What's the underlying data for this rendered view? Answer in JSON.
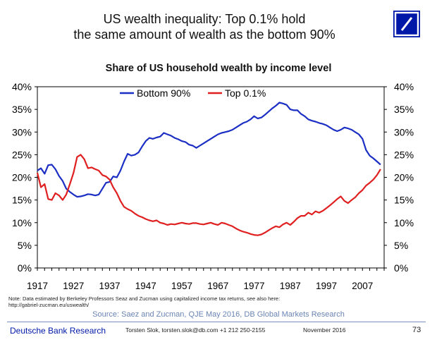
{
  "slide": {
    "title_line1": "US wealth inequality: Top 0.1% hold",
    "title_line2": "the same amount of wealth as the bottom 90%"
  },
  "chart_data": {
    "type": "line",
    "title": "Share of US household wealth by income level",
    "xlabel": "",
    "ylabel": "",
    "xlim": [
      1917,
      2013
    ],
    "ylim": [
      0,
      40
    ],
    "x_ticks": [
      1917,
      1927,
      1937,
      1947,
      1957,
      1967,
      1977,
      1987,
      1997,
      2007
    ],
    "y_ticks": [
      "0%",
      "5%",
      "10%",
      "15%",
      "20%",
      "25%",
      "30%",
      "35%",
      "40%"
    ],
    "grid": false,
    "legend_position": "top-center",
    "series": [
      {
        "name": "Bottom 90%",
        "color": "#1c2fc4",
        "x": [
          1917,
          1918,
          1919,
          1920,
          1921,
          1922,
          1923,
          1924,
          1925,
          1926,
          1927,
          1928,
          1929,
          1930,
          1931,
          1932,
          1933,
          1934,
          1935,
          1936,
          1937,
          1938,
          1939,
          1940,
          1941,
          1942,
          1943,
          1944,
          1945,
          1946,
          1947,
          1948,
          1949,
          1950,
          1951,
          1952,
          1953,
          1954,
          1955,
          1956,
          1957,
          1958,
          1959,
          1960,
          1961,
          1962,
          1963,
          1964,
          1965,
          1966,
          1967,
          1968,
          1969,
          1970,
          1971,
          1972,
          1973,
          1974,
          1975,
          1976,
          1977,
          1978,
          1979,
          1980,
          1981,
          1982,
          1983,
          1984,
          1985,
          1986,
          1987,
          1988,
          1989,
          1990,
          1991,
          1992,
          1993,
          1994,
          1995,
          1996,
          1997,
          1998,
          1999,
          2000,
          2001,
          2002,
          2003,
          2004,
          2005,
          2006,
          2007,
          2008,
          2009,
          2010,
          2011,
          2012
        ],
        "values": [
          21.5,
          22.0,
          20.8,
          22.7,
          22.8,
          21.8,
          20.3,
          19.2,
          17.5,
          16.8,
          16.2,
          15.7,
          15.8,
          16.0,
          16.3,
          16.2,
          16.0,
          16.2,
          17.5,
          18.8,
          19.0,
          20.2,
          20.0,
          21.5,
          23.5,
          25.2,
          24.8,
          25.0,
          25.5,
          26.8,
          28.0,
          28.7,
          28.5,
          28.8,
          29.0,
          29.8,
          29.5,
          29.2,
          28.7,
          28.4,
          28.0,
          27.8,
          27.2,
          27.0,
          26.5,
          27.0,
          27.5,
          28.0,
          28.5,
          29.0,
          29.5,
          29.8,
          30.0,
          30.2,
          30.5,
          31.0,
          31.5,
          32.0,
          32.3,
          32.8,
          33.5,
          33.0,
          33.2,
          33.8,
          34.5,
          35.2,
          35.8,
          36.5,
          36.3,
          36.0,
          35.0,
          34.8,
          34.8,
          34.0,
          33.5,
          32.8,
          32.5,
          32.3,
          32.0,
          31.8,
          31.5,
          31.0,
          30.5,
          30.2,
          30.5,
          31.0,
          30.8,
          30.5,
          30.0,
          29.5,
          28.5,
          26.0,
          24.8,
          24.2,
          23.5,
          22.8
        ]
      },
      {
        "name": "Top 0.1%",
        "color": "#e02020",
        "x": [
          1917,
          1918,
          1919,
          1920,
          1921,
          1922,
          1923,
          1924,
          1925,
          1926,
          1927,
          1928,
          1929,
          1930,
          1931,
          1932,
          1933,
          1934,
          1935,
          1936,
          1937,
          1938,
          1939,
          1940,
          1941,
          1942,
          1943,
          1944,
          1945,
          1946,
          1947,
          1948,
          1949,
          1950,
          1951,
          1952,
          1953,
          1954,
          1955,
          1956,
          1957,
          1958,
          1959,
          1960,
          1961,
          1962,
          1963,
          1964,
          1965,
          1966,
          1967,
          1968,
          1969,
          1970,
          1971,
          1972,
          1973,
          1974,
          1975,
          1976,
          1977,
          1978,
          1979,
          1980,
          1981,
          1982,
          1983,
          1984,
          1985,
          1986,
          1987,
          1988,
          1989,
          1990,
          1991,
          1992,
          1993,
          1994,
          1995,
          1996,
          1997,
          1998,
          1999,
          2000,
          2001,
          2002,
          2003,
          2004,
          2005,
          2006,
          2007,
          2008,
          2009,
          2010,
          2011,
          2012
        ],
        "values": [
          21.0,
          17.8,
          18.5,
          15.2,
          15.0,
          16.5,
          16.0,
          15.0,
          16.2,
          18.5,
          21.0,
          24.5,
          25.0,
          24.0,
          22.0,
          22.2,
          21.8,
          21.5,
          20.5,
          20.2,
          19.5,
          17.8,
          16.5,
          14.8,
          13.5,
          13.0,
          12.6,
          12.0,
          11.5,
          11.2,
          10.8,
          10.5,
          10.3,
          10.5,
          10.0,
          9.8,
          9.5,
          9.7,
          9.6,
          9.8,
          10.0,
          9.8,
          9.7,
          9.9,
          9.9,
          9.7,
          9.6,
          9.8,
          10.0,
          9.7,
          9.5,
          10.0,
          9.8,
          9.5,
          9.2,
          8.7,
          8.3,
          8.0,
          7.8,
          7.5,
          7.3,
          7.2,
          7.4,
          7.8,
          8.3,
          8.8,
          9.2,
          9.0,
          9.6,
          10.0,
          9.5,
          10.2,
          11.0,
          11.5,
          11.5,
          12.2,
          11.8,
          12.5,
          12.2,
          12.6,
          13.2,
          13.8,
          14.5,
          15.2,
          15.8,
          14.8,
          14.3,
          15.0,
          15.6,
          16.5,
          17.2,
          18.2,
          18.8,
          19.5,
          20.5,
          21.8
        ]
      }
    ]
  },
  "note": {
    "line1": "Note: Data estimated by Berkeley Professors Seaz and Zucman using capitalized income tax returns, see also here:",
    "line2": "http://gabriel-zucman.eu/uswealth/"
  },
  "source": "Source: Saez and Zucman, QJE May 2016, DB Global Markets Research",
  "footer": {
    "brand": "Deutsche Bank Research",
    "contact": "Torsten Slok, torsten.slok@db.com  +1 212 250-2155",
    "date": "November 2016",
    "page": "73"
  },
  "colors": {
    "brand_blue": "#0018a8",
    "bottom90": "#1c2fc4",
    "top01": "#e02020"
  },
  "icons": {
    "logo": "deutsche-bank-slash-logo"
  }
}
